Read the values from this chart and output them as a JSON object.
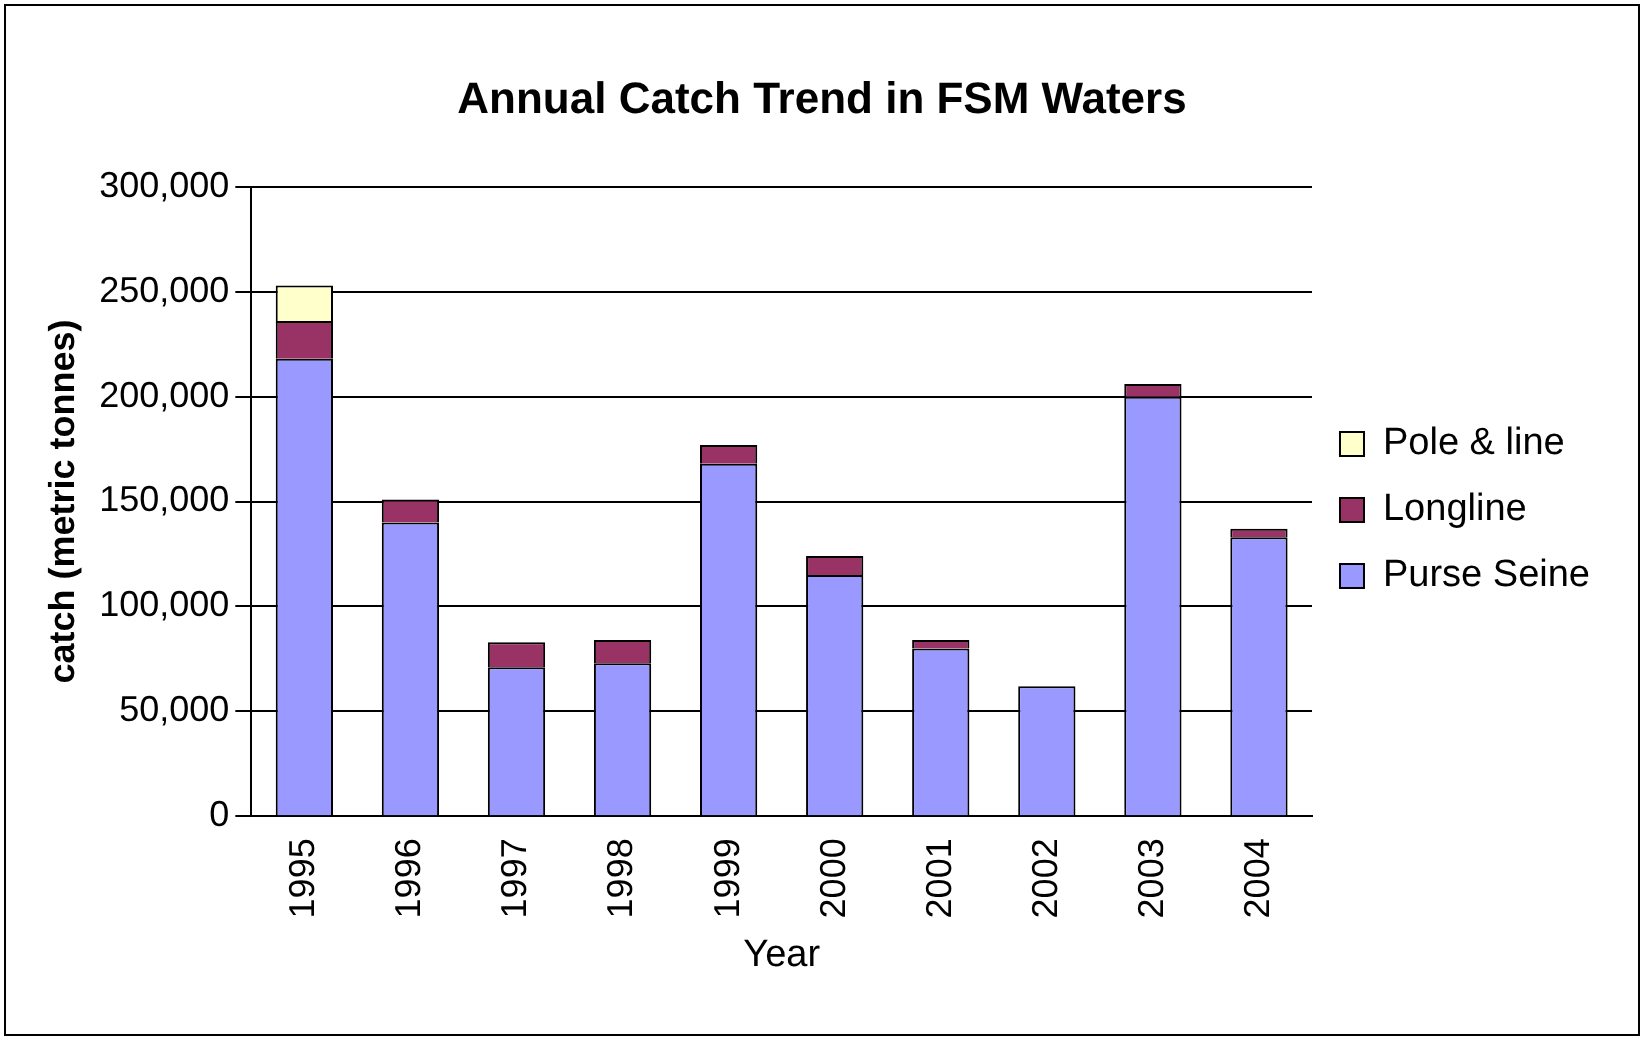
{
  "chart_data": {
    "type": "bar",
    "title": "Annual Catch Trend in FSM Waters",
    "xlabel": "Year",
    "ylabel": "catch (metric tonnes)",
    "categories": [
      "1995",
      "1996",
      "1997",
      "1998",
      "1999",
      "2000",
      "2001",
      "2002",
      "2003",
      "2004"
    ],
    "stacked": true,
    "series": [
      {
        "name": "Purse Seine",
        "color": "#9999ff",
        "values": [
          218000,
          140000,
          71000,
          73000,
          168000,
          115000,
          80000,
          62000,
          200000,
          133000
        ]
      },
      {
        "name": "Longline",
        "color": "#993366",
        "values": [
          18000,
          11000,
          12000,
          11000,
          9000,
          9000,
          4000,
          0,
          6000,
          4000
        ]
      },
      {
        "name": "Pole & line",
        "color": "#ffffcc",
        "values": [
          17000,
          0,
          0,
          0,
          0,
          0,
          0,
          0,
          0,
          0
        ]
      }
    ],
    "ylim": [
      0,
      300000
    ],
    "yticks": [
      {
        "value": 0,
        "label": "0"
      },
      {
        "value": 50000,
        "label": "50,000"
      },
      {
        "value": 100000,
        "label": "100,000"
      },
      {
        "value": 150000,
        "label": "150,000"
      },
      {
        "value": 200000,
        "label": "200,000"
      },
      {
        "value": 250000,
        "label": "250,000"
      },
      {
        "value": 300000,
        "label": "300,000"
      }
    ],
    "grid": "y",
    "legend": "right"
  }
}
